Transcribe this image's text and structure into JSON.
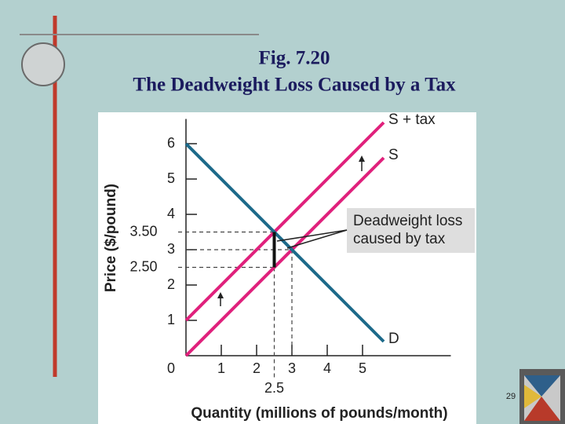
{
  "figure": "Fig. 7.20",
  "page_number": "29",
  "chart_data": {
    "type": "line",
    "title": "The Deadweight Loss Caused by a Tax",
    "x_label": "Quantity (millions of pounds/month)",
    "y_label": "Price ($/pound)",
    "xlim": [
      0,
      7.5
    ],
    "ylim": [
      0,
      6.7
    ],
    "xticks": [
      0,
      1,
      2,
      3,
      4,
      5
    ],
    "yticks": [
      0,
      1,
      2,
      3,
      4,
      5,
      6
    ],
    "marked_prices": [
      {
        "value": 3.5,
        "label": "3.50"
      },
      {
        "value": 2.5,
        "label": "2.50"
      }
    ],
    "marked_quantity": [
      {
        "value": 2.5,
        "label": "2.5"
      }
    ],
    "equilibrium": {
      "quantity": 3,
      "price": 3
    },
    "series": [
      {
        "name": "S + tax",
        "color": "#e0217c",
        "x": [
          0,
          5.6
        ],
        "values": [
          1,
          6.6
        ]
      },
      {
        "name": "S",
        "color": "#e0217c",
        "x": [
          0,
          5.6
        ],
        "values": [
          0,
          5.6
        ]
      },
      {
        "name": "D",
        "color": "#1d6a8a",
        "x": [
          0,
          5.6
        ],
        "values": [
          6,
          0.4
        ]
      }
    ],
    "callout": [
      "Deadweight loss",
      "caused by tax"
    ]
  }
}
